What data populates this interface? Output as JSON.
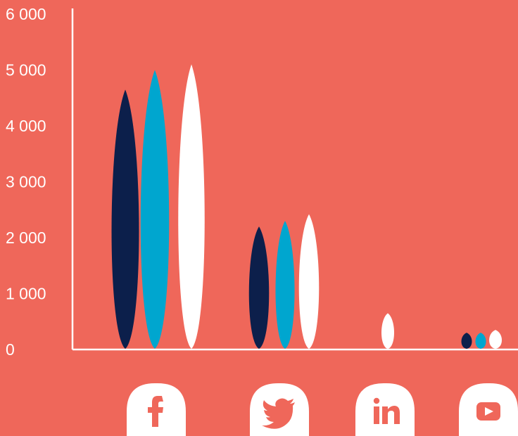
{
  "colors": {
    "background": "#ef675a",
    "axis": "#ffffff",
    "series": [
      "#0c1f4b",
      "#00a6cf",
      "#ffffff"
    ],
    "icon_bg": "#ffffff",
    "icon_fg": "#ef675a"
  },
  "chart_data": {
    "type": "bar",
    "title": "",
    "xlabel": "",
    "ylabel": "",
    "ylim": [
      0,
      6000
    ],
    "yticks": [
      {
        "value": 0,
        "label": "0"
      },
      {
        "value": 1000,
        "label": "1 000"
      },
      {
        "value": 2000,
        "label": "2 000"
      },
      {
        "value": 3000,
        "label": "3 000"
      },
      {
        "value": 4000,
        "label": "4 000"
      },
      {
        "value": 5000,
        "label": "5 000"
      },
      {
        "value": 6000,
        "label": "6 000"
      }
    ],
    "grid": false,
    "legend": "none",
    "categories": [
      "facebook",
      "twitter",
      "linkedin",
      "youtube"
    ],
    "category_icons": [
      "facebook-icon",
      "twitter-icon",
      "linkedin-icon",
      "youtube-icon"
    ],
    "series": [
      {
        "values": [
          4650,
          2200,
          null,
          300
        ]
      },
      {
        "values": [
          5000,
          2300,
          null,
          300
        ]
      },
      {
        "values": [
          5100,
          2420,
          650,
          350
        ]
      }
    ]
  }
}
